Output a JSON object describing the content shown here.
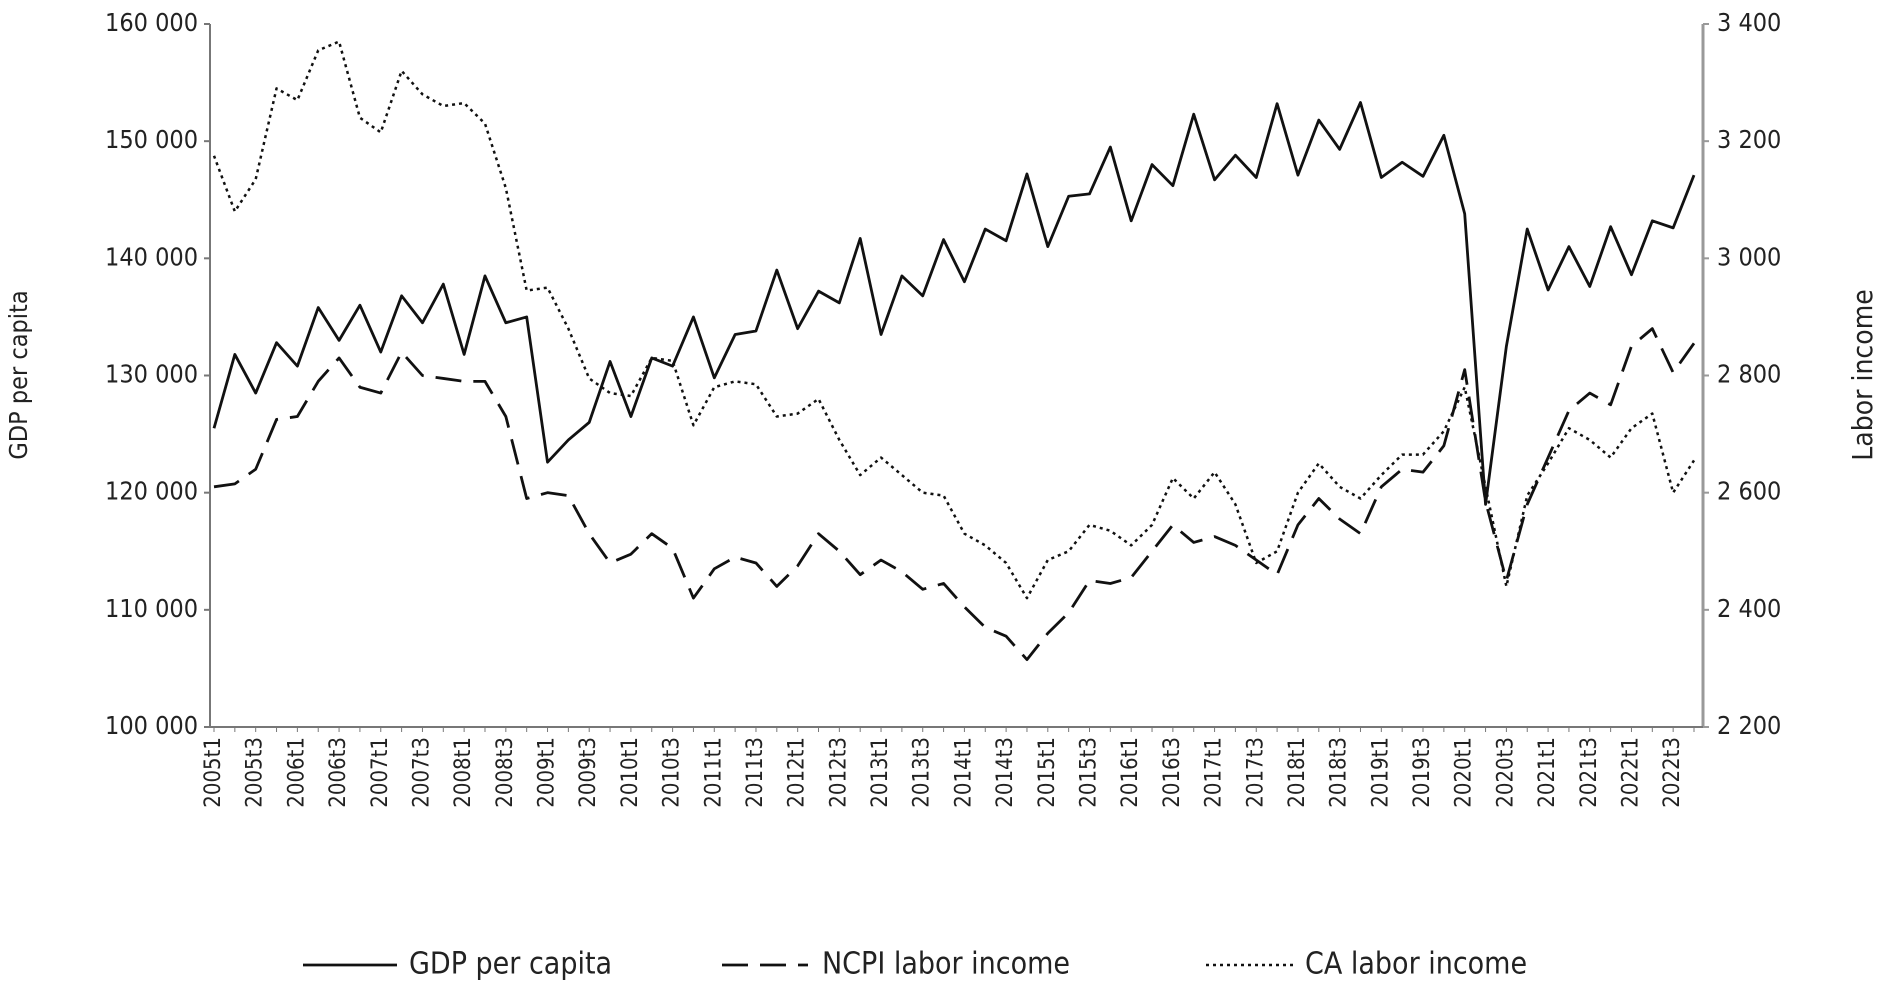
{
  "chart_data": {
    "type": "line",
    "y_label": "GDP per capita",
    "y2_label": "Labor income",
    "categories": [
      "2005t1",
      null,
      "2005t3",
      null,
      "2006t1",
      null,
      "2006t3",
      null,
      "2007t1",
      null,
      "2007t3",
      null,
      "2008t1",
      null,
      "2008t3",
      null,
      "2009t1",
      null,
      "2009t3",
      null,
      "2010t1",
      null,
      "2010t3",
      null,
      "2011t1",
      null,
      "2011t3",
      null,
      "2012t1",
      null,
      "2012t3",
      null,
      "2013t1",
      null,
      "2013t3",
      null,
      "2014t1",
      null,
      "2014t3",
      null,
      "2015t1",
      null,
      "2015t3",
      null,
      "2016t1",
      null,
      "2016t3",
      null,
      "2017t1",
      null,
      "2017t3",
      null,
      "2018t1",
      null,
      "2018t3",
      null,
      "2019t1",
      null,
      "2019t3",
      null,
      "2020t1",
      null,
      "2020t3",
      null,
      "2021t1",
      null,
      "2021t3",
      null,
      "2022t1",
      null,
      "2022t3",
      null
    ],
    "series": [
      {
        "name": "GDP per capita",
        "color": "#111111",
        "dash": "solid",
        "axis": "y",
        "values": [
          125500,
          131800,
          128500,
          132800,
          130800,
          135800,
          133000,
          136000,
          132000,
          136800,
          134500,
          137800,
          131800,
          138500,
          134500,
          135000,
          122600,
          124500,
          126000,
          131200,
          126500,
          131500,
          130800,
          135000,
          129800,
          133500,
          133800,
          139000,
          134000,
          137200,
          136200,
          141700,
          133500,
          138500,
          136800,
          141600,
          138000,
          142500,
          141500,
          147200,
          141000,
          145300,
          145500,
          149500,
          143200,
          148000,
          146200,
          152300,
          146700,
          148800,
          146900,
          153200,
          147100,
          151800,
          149300,
          153300,
          146900,
          148200,
          147000,
          150500,
          143800,
          119000,
          132500,
          142500,
          137300,
          141000,
          137600,
          142700,
          138600,
          143200,
          142600,
          147100
        ]
      },
      {
        "name": "NCPI labor income",
        "color": "#111111",
        "dash": "dashed",
        "axis": "y2",
        "values": [
          2610,
          2615,
          2640,
          2725,
          2730,
          2790,
          2830,
          2780,
          2770,
          2840,
          2800,
          2795,
          2790,
          2790,
          2730,
          2590,
          2600,
          2595,
          2530,
          2480,
          2495,
          2530,
          2505,
          2420,
          2470,
          2490,
          2480,
          2440,
          2475,
          2530,
          2500,
          2460,
          2485,
          2465,
          2435,
          2445,
          2405,
          2370,
          2355,
          2315,
          2360,
          2395,
          2450,
          2445,
          2455,
          2500,
          2545,
          2515,
          2525,
          2510,
          2485,
          2460,
          2545,
          2590,
          2555,
          2530,
          2610,
          2640,
          2635,
          2680,
          2810,
          2585,
          2450,
          2580,
          2660,
          2740,
          2770,
          2750,
          2850,
          2880,
          2805,
          2855
        ]
      },
      {
        "name": "CA labor income",
        "color": "#111111",
        "dash": "dotted",
        "axis": "y2",
        "values": [
          3175,
          3080,
          3135,
          3290,
          3270,
          3355,
          3370,
          3240,
          3215,
          3320,
          3280,
          3260,
          3265,
          3230,
          3120,
          2945,
          2950,
          2880,
          2795,
          2770,
          2765,
          2830,
          2825,
          2715,
          2780,
          2790,
          2785,
          2730,
          2735,
          2760,
          2690,
          2630,
          2660,
          2630,
          2600,
          2595,
          2530,
          2510,
          2480,
          2420,
          2485,
          2500,
          2545,
          2535,
          2510,
          2545,
          2625,
          2590,
          2635,
          2580,
          2480,
          2500,
          2600,
          2650,
          2610,
          2590,
          2630,
          2665,
          2665,
          2705,
          2780,
          2610,
          2440,
          2595,
          2650,
          2710,
          2690,
          2660,
          2710,
          2735,
          2600,
          2655
        ]
      }
    ],
    "ylim": [
      100000,
      160000
    ],
    "yticks": [
      {
        "value": 100000,
        "label": "100 000"
      },
      {
        "value": 110000,
        "label": "110 000"
      },
      {
        "value": 120000,
        "label": "120 000"
      },
      {
        "value": 130000,
        "label": "130 000"
      },
      {
        "value": 140000,
        "label": "140 000"
      },
      {
        "value": 150000,
        "label": "150 000"
      },
      {
        "value": 160000,
        "label": "160 000"
      }
    ],
    "y2lim": [
      2200,
      3400
    ],
    "y2ticks": [
      {
        "value": 2200,
        "label": "2 200"
      },
      {
        "value": 2400,
        "label": "2 400"
      },
      {
        "value": 2600,
        "label": "2 600"
      },
      {
        "value": 2800,
        "label": "2 800"
      },
      {
        "value": 3000,
        "label": "3 000"
      },
      {
        "value": 3200,
        "label": "3 200"
      },
      {
        "value": 3400,
        "label": "3 400"
      }
    ],
    "legend": "bottom",
    "grid": false
  }
}
